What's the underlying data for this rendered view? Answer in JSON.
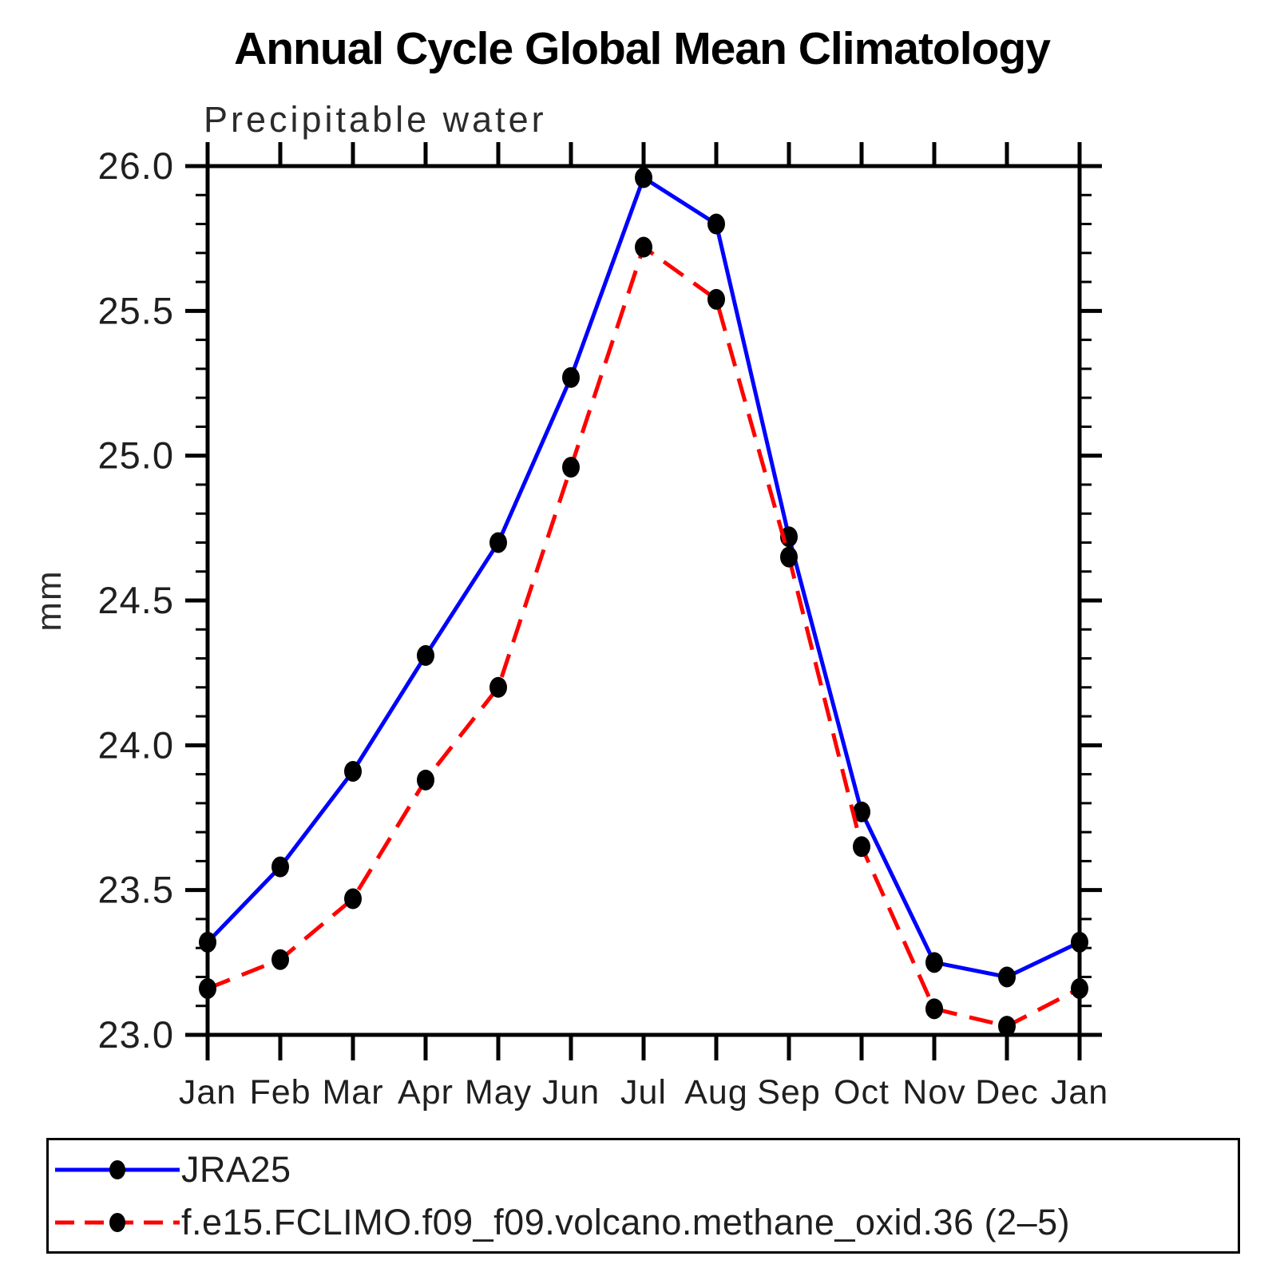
{
  "title": "Annual Cycle Global Mean Climatology",
  "subtitle": "Precipitable water",
  "chart_data": {
    "type": "line",
    "categories": [
      "Jan",
      "Feb",
      "Mar",
      "Apr",
      "May",
      "Jun",
      "Jul",
      "Aug",
      "Sep",
      "Oct",
      "Nov",
      "Dec",
      "Jan"
    ],
    "series": [
      {
        "name": "JRA25",
        "color": "#0000ff",
        "line_style": "solid",
        "marker": "black-filled-dot",
        "values": [
          23.32,
          23.58,
          23.91,
          24.31,
          24.7,
          25.27,
          25.96,
          25.8,
          24.72,
          23.77,
          23.25,
          23.2,
          23.32
        ]
      },
      {
        "name": "f.e15.FCLIMO.f09_f09.volcano.methane_oxid.36 (2–5)",
        "color": "#ff0000",
        "line_style": "dashed",
        "marker": "black-filled-dot",
        "values": [
          23.16,
          23.26,
          23.47,
          23.88,
          24.2,
          24.96,
          25.72,
          25.54,
          24.65,
          23.65,
          23.09,
          23.03,
          23.16
        ]
      }
    ],
    "xlabel": "",
    "ylabel": "mm",
    "ylim": [
      23.0,
      26.0
    ],
    "y_major_tick_interval": 0.5,
    "y_minor_tick_interval": 0.1,
    "y_major_tick_labels": [
      "23.0",
      "23.5",
      "24.0",
      "24.5",
      "25.0",
      "25.5",
      "26.0"
    ],
    "grid": false,
    "frame": "box-with-outward-ticks",
    "legend_position": "bottom"
  },
  "colors": {
    "axis": "#000000",
    "text": "#1f1f1f",
    "background": "#ffffff"
  }
}
